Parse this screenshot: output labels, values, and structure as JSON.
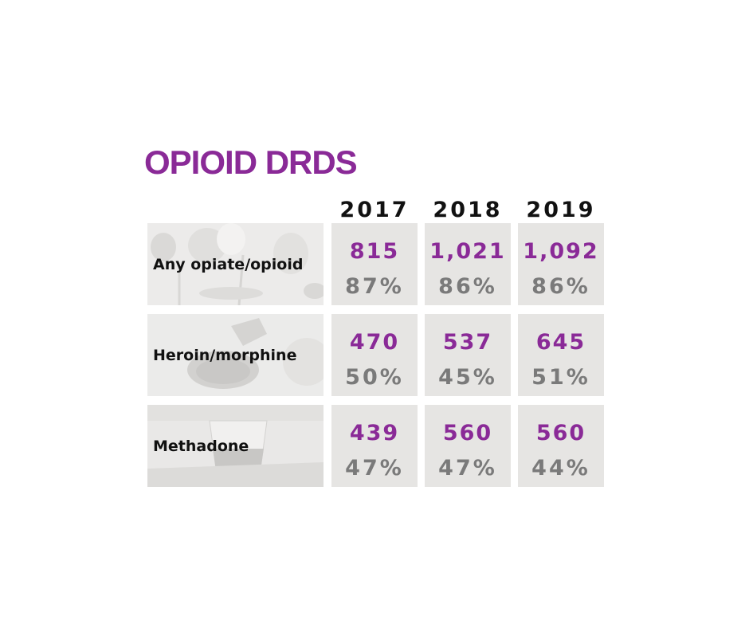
{
  "title": "OPIOID DRDS",
  "colors": {
    "accent": "#8a2a97",
    "percent": "#7a7a7a",
    "cell_background": "#e6e5e3",
    "text": "#111111"
  },
  "years": [
    "2017",
    "2018",
    "2019"
  ],
  "rows": [
    {
      "label": "Any opiate/opioid",
      "image": "poppy-heads-photo",
      "values": [
        {
          "count": "815",
          "percent": "87%"
        },
        {
          "count": "1,021",
          "percent": "86%"
        },
        {
          "count": "1,092",
          "percent": "86%"
        }
      ]
    },
    {
      "label": "Heroin/morphine",
      "image": "heroin-spoon-photo",
      "values": [
        {
          "count": "470",
          "percent": "50%"
        },
        {
          "count": "537",
          "percent": "45%"
        },
        {
          "count": "645",
          "percent": "51%"
        }
      ]
    },
    {
      "label": "Methadone",
      "image": "methadone-cup-photo",
      "values": [
        {
          "count": "439",
          "percent": "47%"
        },
        {
          "count": "560",
          "percent": "47%"
        },
        {
          "count": "560",
          "percent": "44%"
        }
      ]
    }
  ],
  "chart_data": {
    "type": "table",
    "title": "OPIOID DRDS",
    "columns": [
      "2017",
      "2018",
      "2019"
    ],
    "rows": [
      {
        "label": "Any opiate/opioid",
        "counts": [
          815,
          1021,
          1092
        ],
        "percents": [
          87,
          86,
          86
        ]
      },
      {
        "label": "Heroin/morphine",
        "counts": [
          470,
          537,
          645
        ],
        "percents": [
          50,
          45,
          51
        ]
      },
      {
        "label": "Methadone",
        "counts": [
          439,
          560,
          560
        ],
        "percents": [
          47,
          47,
          44
        ]
      }
    ]
  }
}
